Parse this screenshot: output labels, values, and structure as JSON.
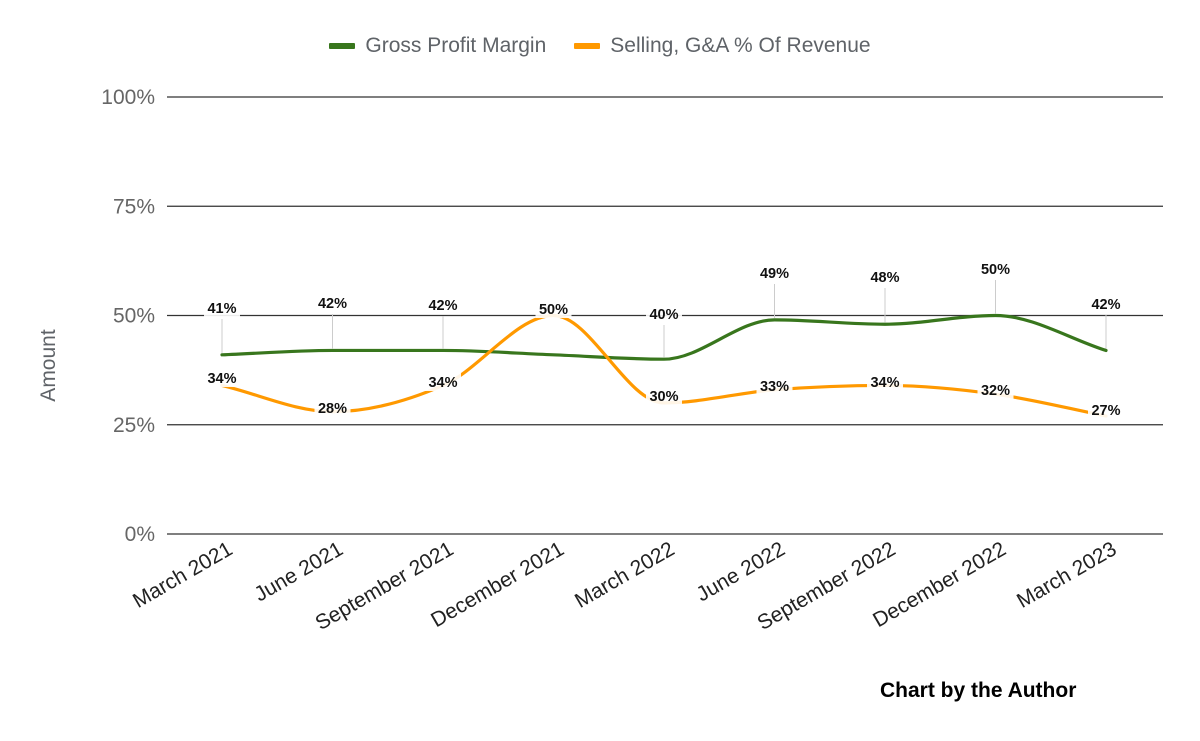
{
  "credit": "Chart by the Author",
  "chart_data": {
    "type": "line",
    "categories": [
      "March 2021",
      "June 2021",
      "September 2021",
      "December 2021",
      "March 2022",
      "June 2022",
      "September 2022",
      "December 2022",
      "March 2023"
    ],
    "ylabel": "Amount",
    "ylim": [
      0,
      100
    ],
    "yticks": [
      "0%",
      "25%",
      "50%",
      "75%",
      "100%"
    ],
    "ytick_values": [
      0,
      25,
      50,
      75,
      100
    ],
    "grid": true,
    "legend_position": "top",
    "smooth": true,
    "series": [
      {
        "name": "Gross Profit Margin",
        "color": "#38761d",
        "values": [
          41,
          42,
          42,
          41,
          40,
          49,
          48,
          50,
          42
        ],
        "labels": [
          "41%",
          "42%",
          "42%",
          "",
          "40%",
          "49%",
          "48%",
          "50%",
          "42%"
        ]
      },
      {
        "name": "Selling, G&A % Of Revenue",
        "color": "#ff9900",
        "values": [
          34,
          28,
          34,
          50,
          30,
          33,
          34,
          32,
          27
        ],
        "labels": [
          "34%",
          "28%",
          "34%",
          "50%",
          "30%",
          "33%",
          "34%",
          "32%",
          "27%"
        ]
      }
    ]
  }
}
